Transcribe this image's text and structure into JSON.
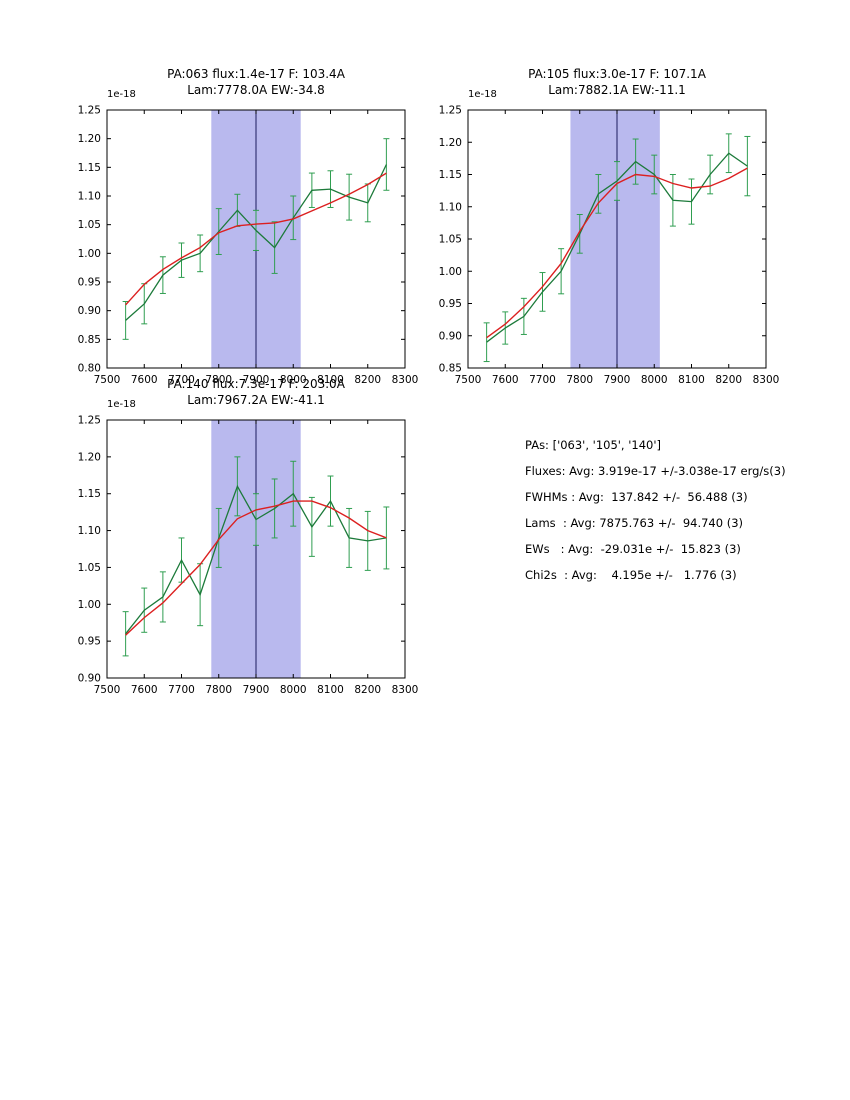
{
  "colors": {
    "band": "#b9b9ee",
    "vline": "#1a1a5e",
    "data": "#1c7a3a",
    "error": "#2f9e50",
    "fit": "#dc2020",
    "axis": "#000000"
  },
  "stats": {
    "lines": [
      "PAs: ['063', '105', '140']",
      "Fluxes: Avg: 3.919e-17 +/-3.038e-17 erg/s(3)",
      "FWHMs : Avg:  137.842 +/-  56.488 (3)",
      "Lams  : Avg: 7875.763 +/-  94.740 (3)",
      "EWs   : Avg:  -29.031e +/-  15.823 (3)",
      "Chi2s  : Avg:    4.195e +/-   1.776 (3)"
    ]
  },
  "chart_data": [
    {
      "type": "line",
      "title_line1": "PA:063 flux:1.4e-17 F: 103.4A",
      "title_line2": "Lam:7778.0A EW:-34.8",
      "offset_label": "1e-18",
      "xlabel": "",
      "ylabel": "",
      "xlim": [
        7500,
        8300
      ],
      "ylim": [
        0.8,
        1.25
      ],
      "xticks": [
        7500,
        7600,
        7700,
        7800,
        7900,
        8000,
        8100,
        8200,
        8300
      ],
      "ytick_step": 0.05,
      "band_x": [
        7780,
        8020
      ],
      "vline_x": 7900,
      "grid": false,
      "legend": "none",
      "x": [
        7550,
        7600,
        7650,
        7700,
        7750,
        7800,
        7850,
        7900,
        7950,
        8000,
        8050,
        8100,
        8150,
        8200,
        8250
      ],
      "series": [
        {
          "name": "spectrum",
          "color_key": "data",
          "values": [
            0.883,
            0.912,
            0.962,
            0.988,
            1.0,
            1.038,
            1.075,
            1.04,
            1.01,
            1.062,
            1.11,
            1.112,
            1.098,
            1.088,
            1.155
          ],
          "errors": [
            0.033,
            0.035,
            0.032,
            0.03,
            0.032,
            0.04,
            0.028,
            0.035,
            0.045,
            0.038,
            0.03,
            0.032,
            0.04,
            0.033,
            0.045
          ]
        },
        {
          "name": "fit",
          "color_key": "fit",
          "values": [
            0.91,
            0.946,
            0.972,
            0.992,
            1.01,
            1.036,
            1.048,
            1.051,
            1.053,
            1.06,
            1.074,
            1.088,
            1.103,
            1.12,
            1.14
          ]
        }
      ]
    },
    {
      "type": "line",
      "title_line1": "PA:105 flux:3.0e-17 F: 107.1A",
      "title_line2": "Lam:7882.1A EW:-11.1",
      "offset_label": "1e-18",
      "xlabel": "",
      "ylabel": "",
      "xlim": [
        7500,
        8300
      ],
      "ylim": [
        0.85,
        1.25
      ],
      "xticks": [
        7500,
        7600,
        7700,
        7800,
        7900,
        8000,
        8100,
        8200,
        8300
      ],
      "ytick_step": 0.05,
      "band_x": [
        7775,
        8015
      ],
      "vline_x": 7900,
      "grid": false,
      "legend": "none",
      "x": [
        7550,
        7600,
        7650,
        7700,
        7750,
        7800,
        7850,
        7900,
        7950,
        8000,
        8050,
        8100,
        8150,
        8200,
        8250
      ],
      "series": [
        {
          "name": "spectrum",
          "color_key": "data",
          "values": [
            0.89,
            0.912,
            0.93,
            0.968,
            1.0,
            1.058,
            1.12,
            1.14,
            1.17,
            1.15,
            1.11,
            1.108,
            1.15,
            1.183,
            1.163
          ],
          "errors": [
            0.03,
            0.025,
            0.028,
            0.03,
            0.035,
            0.03,
            0.03,
            0.03,
            0.035,
            0.03,
            0.04,
            0.035,
            0.03,
            0.03,
            0.046
          ]
        },
        {
          "name": "fit",
          "color_key": "fit",
          "values": [
            0.897,
            0.918,
            0.945,
            0.976,
            1.012,
            1.062,
            1.106,
            1.136,
            1.15,
            1.147,
            1.136,
            1.129,
            1.132,
            1.144,
            1.16
          ]
        }
      ]
    },
    {
      "type": "line",
      "title_line1": "PA:140 flux:7.3e-17 F: 203.0A",
      "title_line2": "Lam:7967.2A EW:-41.1",
      "offset_label": "1e-18",
      "xlabel": "",
      "ylabel": "",
      "xlim": [
        7500,
        8300
      ],
      "ylim": [
        0.9,
        1.25
      ],
      "xticks": [
        7500,
        7600,
        7700,
        7800,
        7900,
        8000,
        8100,
        8200,
        8300
      ],
      "ytick_step": 0.05,
      "band_x": [
        7780,
        8020
      ],
      "vline_x": 7900,
      "grid": false,
      "legend": "none",
      "x": [
        7550,
        7600,
        7650,
        7700,
        7750,
        7800,
        7850,
        7900,
        7950,
        8000,
        8050,
        8100,
        8150,
        8200,
        8250
      ],
      "series": [
        {
          "name": "spectrum",
          "color_key": "data",
          "values": [
            0.96,
            0.992,
            1.01,
            1.06,
            1.013,
            1.09,
            1.16,
            1.115,
            1.13,
            1.15,
            1.105,
            1.14,
            1.09,
            1.086,
            1.09
          ],
          "errors": [
            0.03,
            0.03,
            0.034,
            0.03,
            0.042,
            0.04,
            0.04,
            0.035,
            0.04,
            0.044,
            0.04,
            0.034,
            0.04,
            0.04,
            0.042
          ]
        },
        {
          "name": "fit",
          "color_key": "fit",
          "values": [
            0.958,
            0.982,
            1.002,
            1.028,
            1.054,
            1.088,
            1.116,
            1.128,
            1.133,
            1.14,
            1.14,
            1.131,
            1.117,
            1.1,
            1.09
          ]
        }
      ]
    }
  ]
}
